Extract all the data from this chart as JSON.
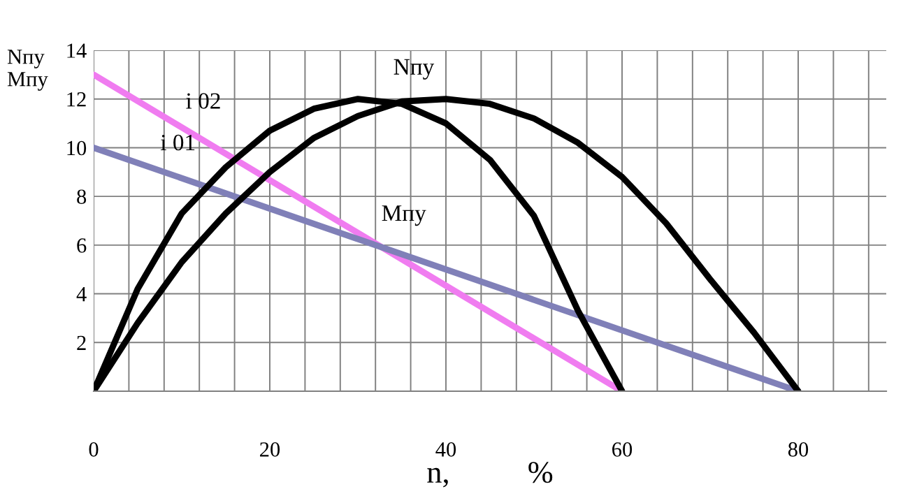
{
  "chart_data": {
    "type": "line",
    "xlabel": "n,          %",
    "ylabel": "Nпу\nMпу",
    "xlim": [
      0,
      90
    ],
    "ylim": [
      0,
      14
    ],
    "xticks": [
      0,
      {
        "value": 4,
        "label": null
      },
      {
        "value": 8,
        "label": null
      },
      {
        "value": 12,
        "label": null
      },
      {
        "value": 16,
        "label": null
      },
      20,
      {
        "value": 24,
        "label": null
      },
      {
        "value": 28,
        "label": null
      },
      {
        "value": 32,
        "label": null
      },
      {
        "value": 36,
        "label": null
      },
      40,
      {
        "value": 44,
        "label": null
      },
      {
        "value": 48,
        "label": null
      },
      {
        "value": 52,
        "label": null
      },
      {
        "value": 56,
        "label": null
      },
      60,
      {
        "value": 64,
        "label": null
      },
      {
        "value": 68,
        "label": null
      },
      {
        "value": 72,
        "label": null
      },
      {
        "value": 76,
        "label": null
      },
      80,
      {
        "value": 84,
        "label": null
      },
      {
        "value": 88,
        "label": null
      }
    ],
    "yticks": [
      2,
      4,
      6,
      8,
      10,
      12,
      14
    ],
    "grid": true,
    "marker": "none",
    "line_style": "solid",
    "series": [
      {
        "color": "#f07cf0",
        "x": [
          0,
          60
        ],
        "values": [
          13,
          0
        ]
      },
      {
        "color": "#8080b8",
        "x": [
          0,
          80
        ],
        "values": [
          10,
          0
        ]
      },
      {
        "color": "#000000",
        "x": [
          0,
          5,
          10,
          15,
          20,
          25,
          30,
          35,
          40,
          45,
          50,
          55,
          60
        ],
        "values": [
          0,
          4.2,
          7.3,
          9.2,
          10.7,
          11.6,
          12,
          11.8,
          11.0,
          9.5,
          7.2,
          3.3,
          0
        ]
      },
      {
        "color": "#000000",
        "x": [
          0,
          5,
          10,
          15,
          20,
          25,
          30,
          35,
          40,
          45,
          50,
          55,
          60,
          65,
          70,
          75,
          80
        ],
        "values": [
          0,
          2.8,
          5.3,
          7.3,
          9.0,
          10.4,
          11.3,
          11.9,
          12,
          11.8,
          11.2,
          10.2,
          8.8,
          6.9,
          4.6,
          2.4,
          0
        ]
      }
    ],
    "annotations": [
      "Nпу",
      "i 02",
      "i 01",
      "Mпу"
    ]
  }
}
